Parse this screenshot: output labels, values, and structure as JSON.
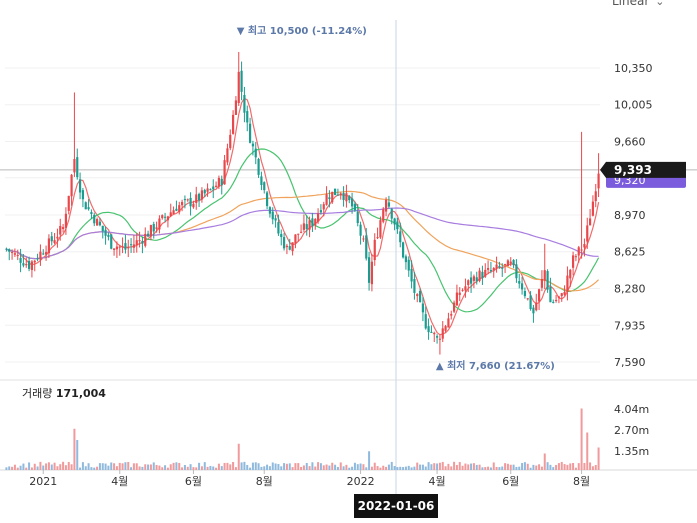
{
  "scale_selector": {
    "label": "Linear"
  },
  "crosshair": {
    "date": "2022-01-06"
  },
  "chart_data": {
    "type": "candlestick",
    "y_ticks": [
      "10,350",
      "10,005",
      "9,660",
      "9,320",
      "8,970",
      "8,625",
      "8,280",
      "7,935",
      "7,590"
    ],
    "ylim": [
      7440,
      10800
    ],
    "x_ticks": [
      "2021",
      "4월",
      "6월",
      "8월",
      "2022",
      "4월",
      "6월",
      "8월"
    ],
    "current_price": {
      "value": 9393,
      "label": "9,393"
    },
    "crosshair_price_label": "9,320",
    "high_annotation": {
      "marker": "▼",
      "label": "최고",
      "value": "10,500 (-11.24%)",
      "price": 10500,
      "x_index": 82
    },
    "low_annotation": {
      "marker": "▲",
      "label": "최저",
      "value": "7,660 (21.67%)",
      "price": 7660,
      "x_index": 153
    },
    "volume": {
      "label": "거래량",
      "value": "171,004",
      "ticks": [
        "4.04m",
        "2.70m",
        "1.35m"
      ]
    },
    "key_points": [
      [
        0,
        8650
      ],
      [
        8,
        8500
      ],
      [
        15,
        8700
      ],
      [
        20,
        8850
      ],
      [
        24,
        9500
      ],
      [
        27,
        9100
      ],
      [
        32,
        8900
      ],
      [
        37,
        8700
      ],
      [
        42,
        8650
      ],
      [
        48,
        8750
      ],
      [
        54,
        8900
      ],
      [
        60,
        9050
      ],
      [
        66,
        9100
      ],
      [
        72,
        9200
      ],
      [
        76,
        9300
      ],
      [
        80,
        9900
      ],
      [
        82,
        10300
      ],
      [
        85,
        9800
      ],
      [
        88,
        9500
      ],
      [
        92,
        9100
      ],
      [
        96,
        8800
      ],
      [
        99,
        8650
      ],
      [
        103,
        8800
      ],
      [
        108,
        8900
      ],
      [
        113,
        9150
      ],
      [
        118,
        9200
      ],
      [
        122,
        9050
      ],
      [
        126,
        8700
      ],
      [
        128,
        8350
      ],
      [
        130,
        8700
      ],
      [
        134,
        9150
      ],
      [
        137,
        8900
      ],
      [
        140,
        8600
      ],
      [
        144,
        8250
      ],
      [
        148,
        7950
      ],
      [
        152,
        7800
      ],
      [
        155,
        7950
      ],
      [
        160,
        8250
      ],
      [
        166,
        8400
      ],
      [
        172,
        8450
      ],
      [
        178,
        8500
      ],
      [
        182,
        8300
      ],
      [
        186,
        8050
      ],
      [
        190,
        8450
      ],
      [
        192,
        8150
      ],
      [
        196,
        8200
      ],
      [
        200,
        8550
      ],
      [
        204,
        8700
      ],
      [
        207,
        9100
      ],
      [
        209,
        9393
      ]
    ],
    "moving_averages": [
      {
        "color": "#f26b6b",
        "window": 5
      },
      {
        "color": "#48c36f",
        "window": 20
      },
      {
        "color": "#f0a35c",
        "window": 60
      },
      {
        "color": "#a77ddf",
        "window": 120
      }
    ],
    "colors": {
      "up": "#e8484b",
      "down": "#1c9c90",
      "price_label_bg": "#1a1a1a",
      "crosshair_label_bg": "#7a5cdd"
    }
  }
}
